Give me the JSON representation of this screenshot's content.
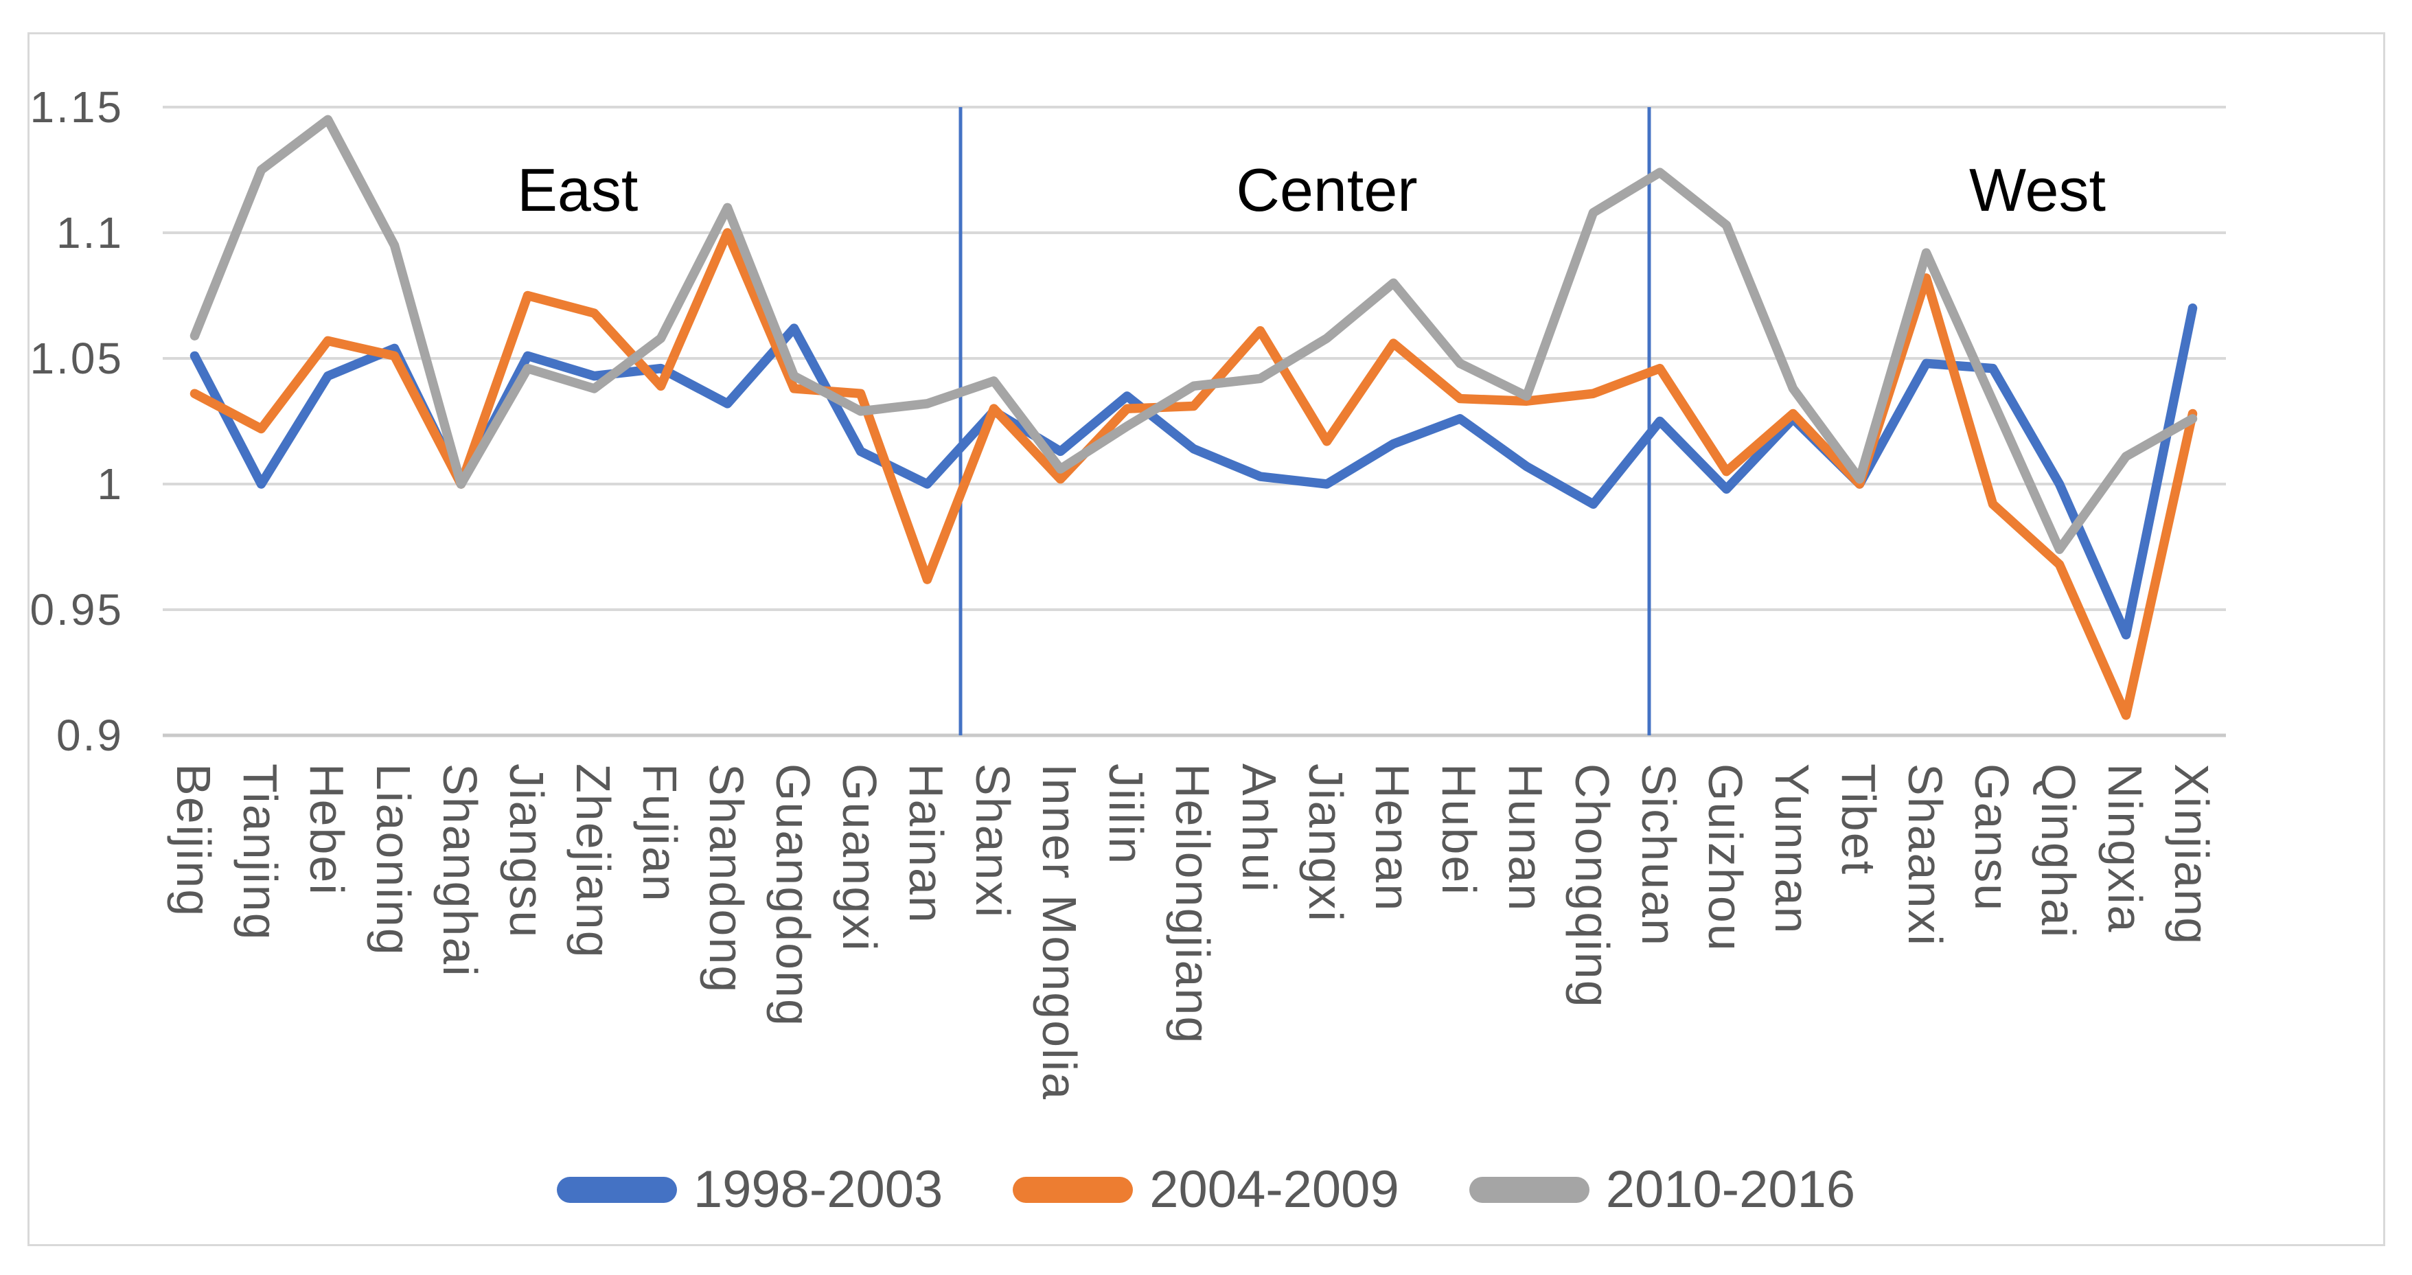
{
  "chart_data": {
    "type": "line",
    "title": "",
    "xlabel": "",
    "ylabel": "",
    "grid": true,
    "legend_position": "bottom",
    "ylim": [
      0.9,
      1.15
    ],
    "y_ticks": [
      {
        "label": "1.15",
        "value": 1.15
      },
      {
        "label": "1.1",
        "value": 1.1
      },
      {
        "label": "1.05",
        "value": 1.05
      },
      {
        "label": "1",
        "value": 1.0
      },
      {
        "label": "0.95",
        "value": 0.95
      },
      {
        "label": "0.9",
        "value": 0.9
      }
    ],
    "categories": [
      "Beijing",
      "Tianjing",
      "Hebei",
      "Liaoning",
      "Shanghai",
      "Jiangsu",
      "Zhejiang",
      "Fujian",
      "Shandong",
      "Guangdong",
      "Guangxi",
      "Hainan",
      "Shanxi",
      "Inner Mongolia",
      "Jiilin",
      "Heilongjiang",
      "Anhui",
      "Jiangxi",
      "Henan",
      "Hubei",
      "Hunan",
      "Chongqing",
      "Sichuan",
      "Guizhou",
      "Yunnan",
      "Tibet",
      "Shaanxi",
      "Gansu",
      "Qinghai",
      "Ningxia",
      "Xinjiang"
    ],
    "series": [
      {
        "name": "1998-2003",
        "color": "#4472C4",
        "values": [
          1.051,
          1.0,
          1.043,
          1.054,
          1.0,
          1.051,
          1.043,
          1.046,
          1.032,
          1.062,
          1.013,
          1.0,
          1.029,
          1.013,
          1.035,
          1.014,
          1.003,
          1.0,
          1.016,
          1.026,
          1.007,
          0.992,
          1.025,
          0.998,
          1.026,
          1.0,
          1.048,
          1.046,
          1.0,
          0.94,
          1.07
        ]
      },
      {
        "name": "2004-2009",
        "color": "#ED7D31",
        "values": [
          1.036,
          1.022,
          1.057,
          1.051,
          1.0,
          1.075,
          1.068,
          1.039,
          1.1,
          1.038,
          1.036,
          0.962,
          1.03,
          1.002,
          1.03,
          1.031,
          1.061,
          1.017,
          1.056,
          1.034,
          1.033,
          1.036,
          1.046,
          1.005,
          1.028,
          1.0,
          1.082,
          0.992,
          0.968,
          0.908,
          1.028
        ]
      },
      {
        "name": "2010-2016",
        "color": "#A5A5A5",
        "values": [
          1.059,
          1.125,
          1.145,
          1.095,
          1.0,
          1.046,
          1.038,
          1.058,
          1.11,
          1.043,
          1.029,
          1.032,
          1.041,
          1.006,
          1.023,
          1.039,
          1.042,
          1.058,
          1.08,
          1.048,
          1.035,
          1.108,
          1.124,
          1.103,
          1.038,
          1.002,
          1.092,
          1.033,
          0.974,
          1.011,
          1.026
        ]
      }
    ],
    "annotations": [
      {
        "text": "East",
        "x_index": 5.75,
        "y_value": 1.118
      },
      {
        "text": "Center",
        "x_index": 17.0,
        "y_value": 1.118
      },
      {
        "text": "West",
        "x_index": 27.67,
        "y_value": 1.118
      }
    ],
    "dividers": [
      {
        "after_category": "Hainan",
        "x_index": 11.5,
        "color": "#4472C4"
      },
      {
        "after_category": "Chongqing",
        "x_index": 21.84,
        "color": "#4472C4"
      }
    ]
  }
}
